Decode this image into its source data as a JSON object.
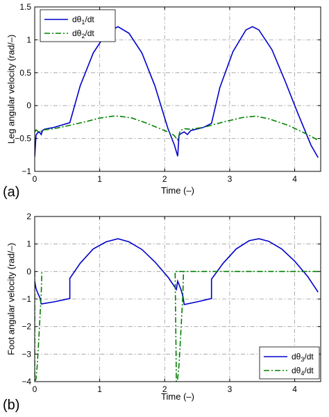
{
  "chart_data": [
    {
      "panel_label": "(a)",
      "type": "line",
      "xlabel": "Time (–)",
      "ylabel": "Leg angular velocity (rad/–)",
      "xlim": [
        0,
        4.4
      ],
      "ylim": [
        -1,
        1.5
      ],
      "xticks": [
        0,
        1,
        2,
        3,
        4
      ],
      "yticks": [
        -1,
        -0.5,
        0,
        0.5,
        1,
        1.5
      ],
      "grid": true,
      "legend_position": "top-left",
      "series": [
        {
          "name": "dθ1/dt",
          "legend_base": "dθ",
          "legend_sub": "1",
          "legend_tail": "/dt",
          "color": "#0000cc",
          "style": "solid",
          "x": [
            0.0,
            0.02,
            0.04,
            0.07,
            0.1,
            0.12,
            0.15,
            0.3,
            0.54,
            0.7,
            0.9,
            1.1,
            1.28,
            1.45,
            1.65,
            1.85,
            2.05,
            2.15,
            2.2,
            2.22,
            2.26,
            2.3,
            2.35,
            2.4,
            2.6,
            2.72,
            2.85,
            3.05,
            3.25,
            3.35,
            3.45,
            3.65,
            3.85,
            4.05,
            4.25,
            4.36
          ],
          "y": [
            -0.78,
            -0.45,
            -0.42,
            -0.4,
            -0.44,
            -0.38,
            -0.36,
            -0.33,
            -0.26,
            0.3,
            0.8,
            1.1,
            1.2,
            1.1,
            0.8,
            0.3,
            -0.35,
            -0.6,
            -0.77,
            -0.45,
            -0.42,
            -0.4,
            -0.44,
            -0.38,
            -0.33,
            -0.27,
            0.28,
            0.82,
            1.15,
            1.2,
            1.15,
            0.85,
            0.38,
            -0.12,
            -0.6,
            -0.79
          ]
        },
        {
          "name": "dθ2/dt",
          "legend_base": "dθ",
          "legend_sub": "2",
          "legend_tail": "/dt",
          "color": "#008000",
          "style": "dashdot",
          "x": [
            0.0,
            0.02,
            0.06,
            0.1,
            0.13,
            0.3,
            0.54,
            0.8,
            1.0,
            1.2,
            1.3,
            1.5,
            1.7,
            1.9,
            2.1,
            2.15,
            2.2,
            2.24,
            2.3,
            2.4,
            2.6,
            2.9,
            3.2,
            3.4,
            3.6,
            3.9,
            4.2,
            4.35
          ],
          "y": [
            -0.4,
            -0.37,
            -0.4,
            -0.39,
            -0.37,
            -0.35,
            -0.3,
            -0.24,
            -0.19,
            -0.16,
            -0.16,
            -0.19,
            -0.26,
            -0.34,
            -0.42,
            -0.46,
            -0.52,
            -0.38,
            -0.35,
            -0.36,
            -0.33,
            -0.25,
            -0.18,
            -0.16,
            -0.2,
            -0.3,
            -0.44,
            -0.52
          ]
        }
      ]
    },
    {
      "panel_label": "(b)",
      "type": "line",
      "xlabel": "Time (–)",
      "ylabel": "Foot angular velocity (rad/–)",
      "xlim": [
        0,
        4.4
      ],
      "ylim": [
        -4,
        2
      ],
      "xticks": [
        0,
        1,
        2,
        3,
        4
      ],
      "yticks": [
        -4,
        -3,
        -2,
        -1,
        0,
        1,
        2
      ],
      "grid": true,
      "legend_position": "bottom-right",
      "series": [
        {
          "name": "dθ3/dt",
          "legend_base": "dθ",
          "legend_sub": "3",
          "legend_tail": "/dt",
          "color": "#0000cc",
          "style": "solid",
          "x": [
            0.0,
            0.02,
            0.05,
            0.08,
            0.1,
            0.3,
            0.54,
            0.54,
            0.7,
            0.9,
            1.1,
            1.28,
            1.45,
            1.65,
            1.85,
            2.05,
            2.18,
            2.2,
            2.25,
            2.28,
            2.3,
            2.5,
            2.72,
            2.72,
            2.9,
            3.1,
            3.3,
            3.45,
            3.6,
            3.8,
            4.0,
            4.2,
            4.36
          ],
          "y": [
            -0.35,
            -0.62,
            -0.8,
            -0.95,
            -1.18,
            -1.1,
            -0.98,
            -0.25,
            0.3,
            0.82,
            1.08,
            1.19,
            1.08,
            0.8,
            0.35,
            -0.2,
            -0.65,
            -0.35,
            -0.65,
            -0.9,
            -1.2,
            -1.1,
            -0.98,
            -0.28,
            0.3,
            0.82,
            1.12,
            1.19,
            1.1,
            0.82,
            0.38,
            -0.18,
            -0.75
          ]
        },
        {
          "name": "dθ4/dt",
          "legend_base": "dθ",
          "legend_sub": "4",
          "legend_tail": "/dt",
          "color": "#008000",
          "style": "dashdot",
          "x": [
            0.0,
            0.0,
            0.02,
            0.04,
            0.06,
            0.08,
            0.1,
            0.11,
            4.36,
            2.16,
            2.18,
            2.2,
            2.22,
            2.24,
            2.26,
            2.28,
            2.29
          ],
          "y": [
            0.0,
            -4.0,
            -3.9,
            -3.4,
            -2.6,
            -1.7,
            -0.8,
            0.0,
            0.0,
            0.0,
            -4.0,
            -3.9,
            -3.4,
            -2.6,
            -1.7,
            -0.8,
            0.0
          ],
          "breaks": [
            8
          ]
        }
      ]
    }
  ]
}
